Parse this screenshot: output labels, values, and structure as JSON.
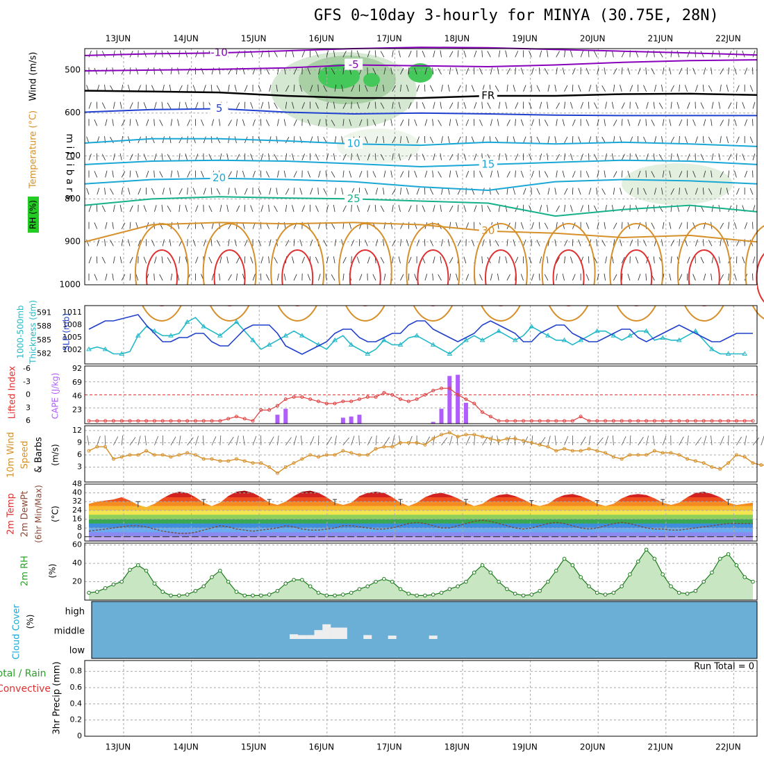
{
  "title": "GFS 0~10day 3-hourly for MINYA (30.75E, 28N)",
  "colors": {
    "purple": "#8800bb",
    "blue": "#1f3fd0",
    "cyan": "#19a7d6",
    "teal": "#14b08a",
    "orange": "#d6902a",
    "red": "#e03030",
    "green": "#2aa02a",
    "cyanline": "#22b8c8",
    "navy": "#1e3ecc",
    "cloudbg": "#6baed6",
    "violet": "#b05cff",
    "rhfill": "#c9e6c3"
  },
  "chart_data": [
    {
      "id": "upper-air",
      "type": "line",
      "dates": [
        "13JUN",
        "14JUN",
        "15JUN",
        "16JUN",
        "17JUN",
        "18JUN",
        "19JUN",
        "20JUN",
        "21JUN",
        "22JUN"
      ],
      "ylabels": [
        "Temperature (°C)",
        "Wind (m/s)",
        "RH (%)"
      ],
      "ylabel_right": "m i l l i b a r s",
      "yticks": [
        "500",
        "600",
        "700",
        "800",
        "900",
        "1000"
      ],
      "ylim": [
        1000,
        450
      ],
      "contour_labels": [
        "-10",
        "-5",
        "FR",
        "5",
        "10",
        "15",
        "20",
        "25",
        "30"
      ],
      "isotherms": [
        {
          "label": "-10",
          "color": "purple",
          "p": [
            466,
            462,
            460,
            455,
            450,
            447,
            448,
            452,
            456,
            460,
            465
          ]
        },
        {
          "label": "-5",
          "color": "purple",
          "p": [
            502,
            500,
            498,
            495,
            488,
            490,
            492,
            488,
            482,
            478,
            476
          ]
        },
        {
          "label": "FR",
          "color": "black",
          "p": [
            548,
            550,
            552,
            560,
            565,
            565,
            560,
            560,
            556,
            555,
            558
          ]
        },
        {
          "label": "5",
          "color": "blue",
          "p": [
            598,
            592,
            590,
            598,
            602,
            600,
            602,
            605,
            606,
            606,
            606
          ]
        },
        {
          "label": "10",
          "color": "cyan",
          "p": [
            670,
            660,
            660,
            665,
            672,
            675,
            668,
            672,
            668,
            672,
            678
          ]
        },
        {
          "label": "15",
          "color": "cyan",
          "p": [
            720,
            712,
            710,
            712,
            718,
            725,
            720,
            715,
            710,
            712,
            720
          ]
        },
        {
          "label": "20",
          "color": "cyan",
          "p": [
            765,
            755,
            752,
            755,
            760,
            772,
            780,
            760,
            755,
            758,
            765
          ]
        },
        {
          "label": "25",
          "color": "teal",
          "p": [
            815,
            800,
            795,
            798,
            800,
            805,
            810,
            840,
            825,
            815,
            830
          ]
        },
        {
          "label": "30",
          "color": "orange",
          "p": [
            900,
            860,
            855,
            858,
            855,
            860,
            875,
            880,
            890,
            885,
            900
          ]
        }
      ]
    },
    {
      "id": "thickness-slp",
      "type": "line",
      "ylabels_left": [
        "1000-500mb",
        "Thickness (dm)"
      ],
      "ylabel_right": "SLP (mb)",
      "yticks_left": [
        "591",
        "588",
        "585",
        "582"
      ],
      "yticks_right": [
        "1011",
        "1008",
        "1005",
        "1002"
      ],
      "series": [
        {
          "name": "Thickness",
          "color": "cyanline",
          "axis": "left",
          "values": [
            583,
            583.5,
            583,
            582,
            582,
            582.5,
            586,
            588,
            587,
            586,
            586,
            586.5,
            589,
            590,
            588,
            587,
            586,
            587.5,
            589,
            587,
            585,
            583,
            584,
            585,
            586,
            587,
            586,
            585,
            584,
            583,
            585,
            586,
            584,
            583,
            582,
            583,
            585,
            584,
            584,
            585.5,
            586,
            585,
            584,
            583,
            582,
            583.5,
            585,
            586,
            585,
            586,
            587,
            586,
            585,
            586,
            588,
            587,
            586,
            585,
            585,
            584,
            585,
            586,
            587,
            587,
            586,
            585,
            586,
            587,
            587,
            585,
            585.5,
            585,
            585,
            586,
            587,
            585,
            583,
            582,
            582,
            582,
            582
          ]
        },
        {
          "name": "SLP",
          "color": "navy",
          "axis": "right",
          "values": [
            1007,
            1008,
            1009,
            1009,
            1009.5,
            1010,
            1010.5,
            1008,
            1006,
            1004,
            1004,
            1005,
            1005,
            1006,
            1006,
            1004,
            1003,
            1003,
            1005,
            1007,
            1008,
            1008,
            1008,
            1006,
            1003,
            1002,
            1001,
            1002,
            1003,
            1004,
            1006,
            1007,
            1007,
            1005,
            1004,
            1004,
            1005,
            1006,
            1006,
            1008,
            1009,
            1009,
            1007,
            1006,
            1005,
            1004,
            1005,
            1006,
            1008,
            1009,
            1008,
            1007,
            1006,
            1004,
            1004,
            1006,
            1007,
            1008,
            1008,
            1006,
            1005,
            1004,
            1004,
            1005,
            1006,
            1007,
            1007,
            1005,
            1004,
            1005,
            1006,
            1007,
            1008,
            1007,
            1006,
            1005,
            1004,
            1004,
            1005,
            1006,
            1006,
            1006
          ]
        }
      ]
    },
    {
      "id": "li-cape",
      "type": "bar",
      "ylabels_left": [
        "Lifted Index"
      ],
      "ylabel_right": "CAPE (J/kg)",
      "yticks_left": [
        "-6",
        "-3",
        "0",
        "3",
        "6"
      ],
      "yticks_right": [
        "92",
        "69",
        "46",
        "23"
      ],
      "lifted_index": [
        6,
        6,
        6,
        6,
        6,
        6,
        6,
        6,
        6,
        6,
        6,
        6,
        6,
        6,
        6,
        6,
        6,
        5.5,
        5,
        5.5,
        6,
        3.5,
        3.5,
        2.5,
        1,
        0.5,
        0.5,
        1,
        1.5,
        2,
        2,
        1.5,
        1.5,
        1,
        0.5,
        0.5,
        -0.5,
        0,
        1,
        1.5,
        1,
        0,
        -1,
        -1.5,
        -1.5,
        0,
        1,
        2,
        4,
        5,
        6,
        6,
        6,
        6,
        6,
        6,
        6,
        6,
        6,
        6,
        5,
        6,
        6,
        6,
        6,
        6,
        6,
        6,
        6,
        6,
        6,
        6,
        6,
        6,
        6,
        6,
        6,
        6,
        6,
        6,
        6,
        6
      ],
      "cape": [
        0,
        0,
        0,
        0,
        0,
        0,
        0,
        0,
        0,
        0,
        0,
        0,
        0,
        0,
        0,
        0,
        0,
        0,
        0,
        0,
        0,
        0,
        0,
        15,
        25,
        0,
        0,
        0,
        0,
        0,
        0,
        10,
        12,
        15,
        0,
        0,
        0,
        0,
        0,
        0,
        0,
        0,
        3,
        25,
        80,
        82,
        35,
        0,
        0,
        0,
        0,
        0,
        0,
        0,
        0,
        0,
        0,
        0,
        0,
        0,
        0,
        0,
        0,
        0,
        0,
        0,
        0,
        0,
        0,
        0,
        0,
        0,
        0,
        0,
        0,
        0,
        0,
        0,
        0,
        0,
        0,
        0
      ]
    },
    {
      "id": "wind10m",
      "type": "line",
      "ylabels": [
        "10m Wind",
        "Speed",
        "& Barbs"
      ],
      "yunit": "(m/s)",
      "yticks": [
        "12",
        "9",
        "6",
        "3"
      ],
      "ylim": [
        0,
        12.5
      ],
      "values": [
        7,
        8,
        8,
        5,
        5.5,
        6,
        6,
        7,
        6,
        6,
        5.5,
        6,
        6.5,
        6,
        5,
        5,
        4.5,
        4.5,
        5,
        4.5,
        4,
        4,
        3,
        1.5,
        3,
        4,
        5,
        6,
        5.5,
        6,
        6,
        7,
        6.5,
        6,
        6,
        7.5,
        8,
        8,
        9,
        9,
        9,
        8.5,
        10,
        11,
        11.5,
        10.5,
        11,
        11,
        10.5,
        10,
        9.5,
        10,
        10,
        9.5,
        9,
        8.5,
        8,
        7,
        7.5,
        7,
        7,
        7.5,
        7,
        6.5,
        5.5,
        5,
        6,
        6,
        6,
        7,
        6.5,
        6.5,
        6,
        5,
        4.5,
        4,
        3,
        2.5,
        4,
        6,
        5.5,
        4,
        3.5,
        3.5,
        3.5
      ]
    },
    {
      "id": "temp2m",
      "type": "area",
      "ylabels": [
        "2m Temp",
        "2m DewPt",
        "(6hr Min/Max)"
      ],
      "yunit": "(°C)",
      "yticks": [
        "48",
        "40",
        "32",
        "24",
        "16",
        "8",
        "0"
      ],
      "ylim": [
        -4,
        48
      ],
      "temp": [
        30,
        32,
        33,
        34,
        36,
        33,
        29,
        27,
        30,
        35,
        39,
        41,
        40,
        36,
        31,
        28,
        31,
        37,
        41,
        42,
        40,
        36,
        31,
        29,
        32,
        37,
        41,
        42,
        40,
        36,
        31,
        29,
        31,
        37,
        40,
        41,
        40,
        36,
        31,
        28,
        31,
        36,
        39,
        40,
        38,
        35,
        31,
        28,
        30,
        35,
        38,
        39,
        37,
        34,
        30,
        28,
        30,
        35,
        38,
        39,
        37,
        34,
        30,
        28,
        30,
        35,
        38,
        39,
        38,
        35,
        31,
        29,
        31,
        36,
        40,
        41,
        39,
        36,
        31,
        29,
        30,
        31
      ],
      "dewpt": [
        5,
        6,
        7,
        8,
        9,
        10,
        10,
        9,
        7,
        5,
        4,
        3,
        3,
        4,
        6,
        8,
        10,
        9,
        7,
        6,
        5,
        6,
        7,
        8,
        10,
        9,
        7,
        6,
        6,
        7,
        8,
        10,
        10,
        9,
        8,
        7,
        7,
        8,
        10,
        12,
        13,
        12,
        10,
        8,
        8,
        10,
        12,
        14,
        15,
        14,
        12,
        10,
        8,
        7,
        8,
        10,
        12,
        13,
        12,
        10,
        8,
        7,
        8,
        10,
        12,
        13,
        12,
        10,
        8,
        7,
        7,
        6,
        6,
        7,
        8,
        9,
        10,
        11,
        12,
        12,
        12,
        12
      ]
    },
    {
      "id": "rh2m",
      "type": "area",
      "ylabels": [
        "2m RH"
      ],
      "yunit": "(%)",
      "yticks": [
        "60",
        "40",
        "20"
      ],
      "ylim": [
        0,
        62
      ],
      "values": [
        8,
        9,
        13,
        17,
        20,
        33,
        38,
        32,
        18,
        9,
        5,
        5,
        6,
        10,
        15,
        25,
        32,
        20,
        9,
        5,
        5,
        5,
        6,
        10,
        18,
        22,
        22,
        15,
        8,
        5,
        5,
        6,
        8,
        12,
        15,
        20,
        23,
        20,
        12,
        7,
        5,
        5,
        6,
        8,
        12,
        15,
        20,
        30,
        38,
        30,
        20,
        12,
        7,
        5,
        6,
        10,
        20,
        32,
        45,
        38,
        25,
        15,
        8,
        6,
        8,
        15,
        28,
        42,
        55,
        45,
        28,
        15,
        8,
        7,
        10,
        20,
        30,
        45,
        50,
        38,
        25,
        20
      ]
    },
    {
      "id": "cloud",
      "type": "bar",
      "ylabels": [
        "Cloud Cover",
        "(%)"
      ],
      "yticks": [
        "high",
        "middle",
        "low"
      ],
      "middle_cloud": [
        0,
        0,
        0,
        0,
        0,
        0,
        0,
        0,
        0,
        0,
        0,
        0,
        0,
        0,
        0,
        0,
        0,
        0,
        0,
        0,
        0,
        0,
        0,
        0,
        0,
        20,
        15,
        15,
        45,
        80,
        60,
        60,
        0,
        0,
        15,
        0,
        0,
        12,
        0,
        0,
        0,
        0,
        12,
        0,
        0,
        0,
        0,
        0,
        0,
        0,
        0,
        0,
        0,
        0,
        0,
        0,
        0,
        0,
        0,
        0,
        0,
        0,
        0,
        0,
        0,
        0,
        0,
        0,
        0,
        0,
        0,
        0,
        0,
        0,
        0,
        0,
        0,
        0,
        0,
        0,
        0,
        0
      ]
    },
    {
      "id": "precip",
      "type": "bar",
      "ylabels": [
        "Total / Rain",
        "Convective"
      ],
      "ylabel_unit": "3hr Precip (mm)",
      "yticks": [
        "0.8",
        "0.6",
        "0.4",
        "0.2",
        "0"
      ],
      "ylim": [
        0,
        0.9
      ],
      "annotation": "Run Total = 0",
      "values": []
    }
  ]
}
